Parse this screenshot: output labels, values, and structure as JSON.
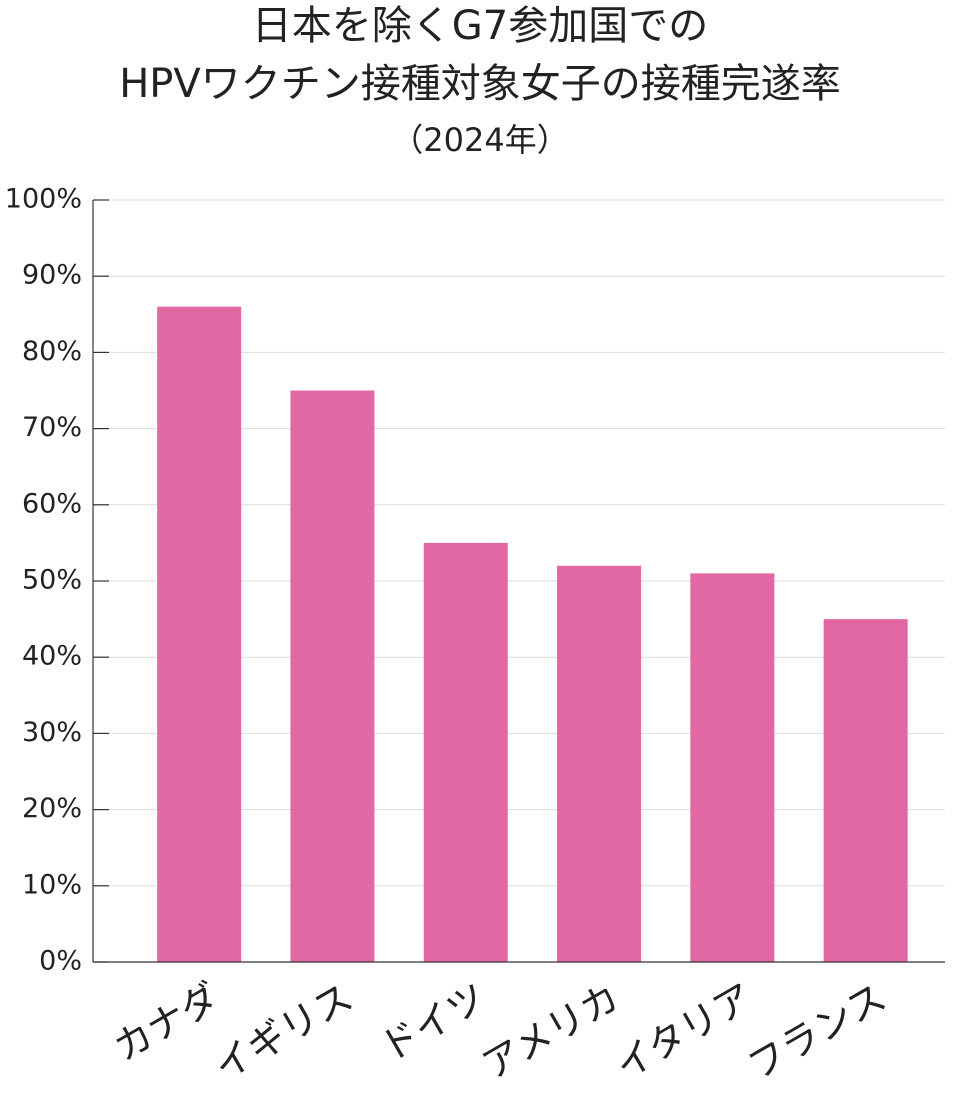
{
  "chart_data": {
    "type": "bar",
    "title": [
      "日本を除くG7参加国での",
      "HPVワクチン接種対象女子の接種完遂率"
    ],
    "subtitle": "（2024年）",
    "categories": [
      "カナダ",
      "イギリス",
      "ドイツ",
      "アメリカ",
      "イタリア",
      "フランス"
    ],
    "values": [
      86,
      75,
      55,
      52,
      51,
      45
    ],
    "color": "#e268a3",
    "ylim": [
      0,
      100
    ],
    "yticks": [
      {
        "value": 0,
        "label": "0%"
      },
      {
        "value": 10,
        "label": "10%"
      },
      {
        "value": 20,
        "label": "20%"
      },
      {
        "value": 30,
        "label": "30%"
      },
      {
        "value": 40,
        "label": "40%"
      },
      {
        "value": 50,
        "label": "50%"
      },
      {
        "value": 60,
        "label": "60%"
      },
      {
        "value": 70,
        "label": "70%"
      },
      {
        "value": 80,
        "label": "80%"
      },
      {
        "value": 90,
        "label": "90%"
      },
      {
        "value": 100,
        "label": "100%"
      }
    ],
    "grid": true
  }
}
